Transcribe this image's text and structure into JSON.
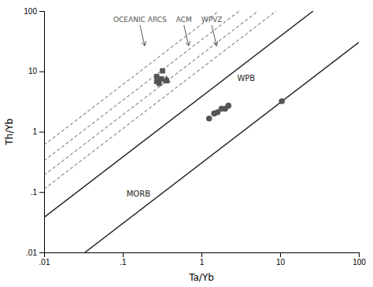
{
  "chart_data": {
    "type": "scatter",
    "xlabel": "Ta/Yb",
    "ylabel": "Th/Yb",
    "log": true,
    "grid": false,
    "xlim": [
      0.01,
      100
    ],
    "ylim": [
      0.01,
      100
    ],
    "xticks": [
      {
        "value": 0.01,
        "label": ".01"
      },
      {
        "value": 0.1,
        "label": ".1"
      },
      1,
      10,
      100
    ],
    "yticks": [
      {
        "value": 0.01,
        "label": ".01"
      },
      {
        "value": 0.1,
        "label": ".1"
      },
      1,
      10,
      100
    ],
    "annotations": [
      "OCEANIC ARCS",
      "ACM",
      "WPVZ"
    ],
    "series": [
      {
        "name": "MORB",
        "type": "line",
        "line_style": "solid",
        "color": "#222222",
        "x": [
          0.0331131121,
          100
        ],
        "values": [
          0.01,
          30.1995172
        ]
      },
      {
        "name": "WPB",
        "type": "line",
        "line_style": "solid",
        "color": "#222222",
        "x": [
          0.01,
          26.3026799
        ],
        "values": [
          0.0380189396,
          100
        ]
      },
      {
        "type": "line",
        "line_style": "dashed",
        "color": "#555555",
        "x": [
          0.01,
          8.91250938
        ],
        "values": [
          0.112201845,
          100
        ]
      },
      {
        "type": "line",
        "line_style": "dashed",
        "color": "#555555",
        "x": [
          0.01,
          5.2480746
        ],
        "values": [
          0.190546072,
          100
        ]
      },
      {
        "type": "line",
        "line_style": "dashed",
        "color": "#555555",
        "x": [
          0.01,
          3.01995172
        ],
        "values": [
          0.331131121,
          100
        ]
      },
      {
        "type": "line",
        "line_style": "dashed",
        "color": "#555555",
        "x": [
          0.01,
          1.65958691
        ],
        "values": [
          0.602559586,
          100
        ]
      },
      {
        "type": "scatter",
        "marker": "square",
        "color": "#555555",
        "x": [
          0.27,
          0.29,
          0.31,
          0.27,
          0.32,
          0.36
        ],
        "values": [
          6.8,
          6.3,
          7.5,
          8.2,
          10.2,
          7.0
        ]
      },
      {
        "type": "scatter",
        "marker": "triangle",
        "color": "#555555",
        "x": [
          0.36
        ],
        "values": [
          7.2
        ]
      },
      {
        "type": "scatter",
        "marker": "circle",
        "color": "#555555",
        "x": [
          1.25,
          1.45,
          1.6,
          1.8,
          2.0,
          2.2,
          10.5
        ],
        "values": [
          1.65,
          2.0,
          2.1,
          2.4,
          2.4,
          2.7,
          3.2
        ]
      }
    ]
  }
}
